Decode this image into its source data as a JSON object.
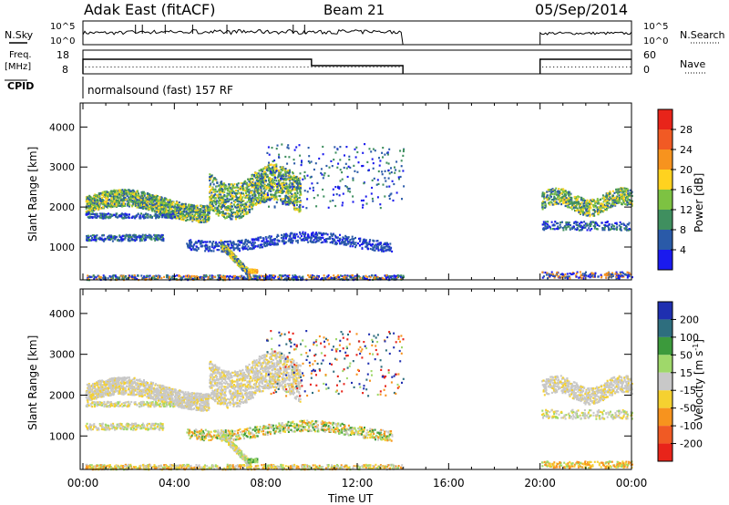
{
  "header": {
    "station": "Adak East (fitACF)",
    "beam": "Beam 21",
    "date": "05/Sep/2014"
  },
  "panels": {
    "nsky_label": "N.Sky",
    "nsearch_label": "N.Search",
    "freq_label_top": "Freq.",
    "freq_label_bottom": "[MHz]",
    "nave_label": "Nave",
    "cpid_label": "CPID",
    "cpid_text": "normalsound (fast) 157 RF",
    "noise_ticks_left": [
      "10^5",
      "10^0"
    ],
    "noise_ticks_right": [
      "10^5",
      "10^0"
    ],
    "freq_ticks": [
      "18",
      "8"
    ],
    "nave_ticks": [
      "60",
      "0"
    ]
  },
  "power_colorbar": {
    "label": "Power [dB]",
    "ticks": [
      "28",
      "24",
      "20",
      "16",
      "12",
      "8",
      "4"
    ],
    "colors": [
      "#e8241a",
      "#f15a24",
      "#f7931e",
      "#ffd21f",
      "#7dc242",
      "#3f8f5f",
      "#2a5aa8",
      "#1a1aee"
    ]
  },
  "velocity_colorbar": {
    "label": "Velocity [m s^-1]",
    "ticks": [
      "200",
      "100",
      "50",
      "15",
      "-15",
      "-50",
      "-100",
      "-200"
    ],
    "colors": [
      "#1f2fb0",
      "#2e6e7e",
      "#3c9a3c",
      "#9fd86a",
      "#c8c8c8",
      "#f5d130",
      "#f7931e",
      "#f05a24",
      "#e8241a"
    ]
  },
  "chart_data": [
    {
      "type": "heatmap",
      "title": "Adak East (fitACF) Beam 21 05/Sep/2014",
      "ylabel": "Slant Range [km]",
      "xlabel": "",
      "x_ticks": [
        "00:00",
        "04:00",
        "08:00",
        "12:00",
        "16:00",
        "20:00",
        "00:00"
      ],
      "y_ticks": [
        "1000",
        "2000",
        "3000",
        "4000"
      ],
      "ylim": [
        180,
        4600
      ],
      "xlim_hours": [
        0,
        24
      ],
      "quantity": "Power [dB]",
      "data_gaps_hours": [
        [
          14.0,
          20.0
        ]
      ]
    },
    {
      "type": "heatmap",
      "ylabel": "Slant Range [km]",
      "xlabel": "Time UT",
      "x_ticks": [
        "00:00",
        "04:00",
        "08:00",
        "12:00",
        "16:00",
        "20:00",
        "00:00"
      ],
      "y_ticks": [
        "1000",
        "2000",
        "3000",
        "4000"
      ],
      "ylim": [
        180,
        4600
      ],
      "xlim_hours": [
        0,
        24
      ],
      "quantity": "Velocity [m s^-1]",
      "data_gaps_hours": [
        [
          14.0,
          20.0
        ]
      ]
    }
  ]
}
